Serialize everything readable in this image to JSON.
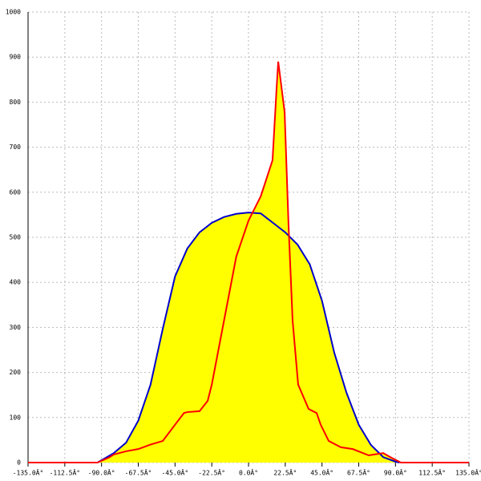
{
  "chart_data": {
    "type": "line",
    "xlim": [
      -135,
      135
    ],
    "ylim": [
      0,
      1000
    ],
    "xticks": [
      {
        "value": -135,
        "label": "-135.0Â°"
      },
      {
        "value": -112.5,
        "label": "-112.5Â°"
      },
      {
        "value": -90,
        "label": "-90.0Â°"
      },
      {
        "value": -67.5,
        "label": "-67.5Â°"
      },
      {
        "value": -45,
        "label": "-45.0Â°"
      },
      {
        "value": -22.5,
        "label": "-22.5Â°"
      },
      {
        "value": 0,
        "label": "0.0Â°"
      },
      {
        "value": 22.5,
        "label": "22.5Â°"
      },
      {
        "value": 45,
        "label": "45.0Â°"
      },
      {
        "value": 67.5,
        "label": "67.5Â°"
      },
      {
        "value": 90,
        "label": "90.0Â°"
      },
      {
        "value": 112.5,
        "label": "112.5Â°"
      },
      {
        "value": 135,
        "label": "135.0Â°"
      }
    ],
    "yticks": [
      0,
      100,
      200,
      300,
      400,
      500,
      600,
      700,
      800,
      900,
      1000
    ],
    "grid": true,
    "fill": "#ffff00",
    "series": [
      {
        "color": "#0000cc",
        "x": [
          -92.5,
          -82.5,
          -75,
          -67.5,
          -60,
          -52.5,
          -45,
          -37.5,
          -30,
          -22.5,
          -15,
          -7.5,
          0,
          7.5,
          15,
          22.5,
          30,
          37.5,
          45,
          52.5,
          60,
          67.5,
          75,
          82.5,
          90,
          92.5
        ],
        "values": [
          0,
          21,
          44,
          93,
          173,
          297,
          413,
          475,
          511,
          532,
          545,
          552,
          555,
          553,
          532,
          511,
          484,
          440,
          359,
          244,
          155,
          84,
          39,
          12,
          2,
          0
        ]
      },
      {
        "color": "#ff0000",
        "x": [
          -135,
          -92.5,
          -85,
          -82.5,
          -75,
          -67.5,
          -60,
          -52.5,
          -45,
          -39.5,
          -37.5,
          -30,
          -25,
          -22.5,
          -15,
          -7.5,
          0,
          7.5,
          14.7,
          17.2,
          18.2,
          22.1,
          24.5,
          27,
          30.4,
          36.8,
          41.7,
          44.2,
          49.1,
          56.5,
          63.8,
          73.6,
          82.5,
          88.4,
          93.3,
          135
        ],
        "values": [
          0,
          0,
          12,
          18,
          25,
          30,
          40,
          48,
          84,
          110,
          112,
          114,
          137,
          173,
          315,
          457,
          537,
          591,
          671,
          831,
          890,
          778,
          528,
          315,
          173,
          119,
          110,
          84,
          48,
          34,
          30,
          16,
          21,
          9,
          0,
          0
        ]
      }
    ]
  }
}
